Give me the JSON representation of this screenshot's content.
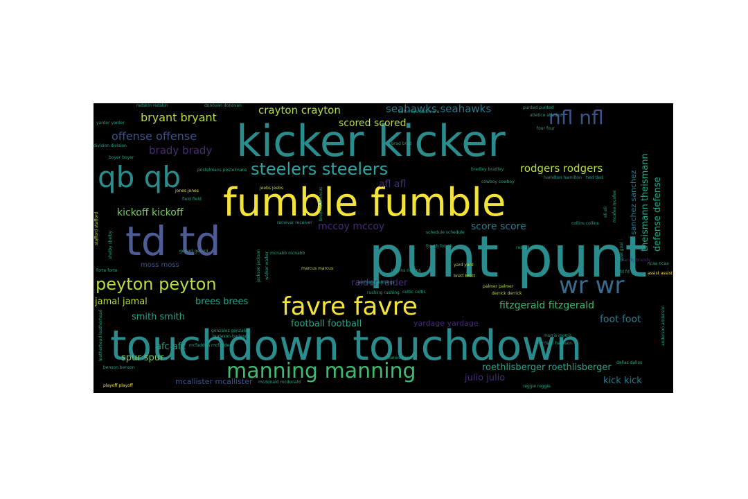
{
  "wordcloud": {
    "palette": {
      "teal": "#2a8c8c",
      "yellow": "#f3e23a",
      "slate": "#4e5b95",
      "green": "#7acb60",
      "lime": "#b7dd3e",
      "purple": "#472b78",
      "blue": "#3b548c",
      "aqua": "#26a58a"
    },
    "words": [
      {
        "text": "punt punt",
        "color": "#2a8c8c"
      },
      {
        "text": "touchdown touchdown",
        "color": "#2a8c8c"
      },
      {
        "text": "kicker kicker",
        "color": "#2a8c8c"
      },
      {
        "text": "fumble fumble",
        "color": "#f3e23a"
      },
      {
        "text": "td td",
        "color": "#4e5b95"
      },
      {
        "text": "qb qb",
        "color": "#2a8c8c"
      },
      {
        "text": "favre favre",
        "color": "#f3e23a"
      },
      {
        "text": "manning manning",
        "color": "#3fbc73"
      },
      {
        "text": "wr wr",
        "color": "#3a6a8c"
      },
      {
        "text": "peyton peyton",
        "color": "#b7dd3e"
      },
      {
        "text": "steelers steelers",
        "color": "#2ea6a4"
      },
      {
        "text": "nfl nfl",
        "color": "#3b548c"
      },
      {
        "text": "crayton crayton",
        "color": "#b7dd3e"
      },
      {
        "text": "seahawks seahawks",
        "color": "#2a7a8c"
      },
      {
        "text": "bryant bryant",
        "color": "#b7dd3e"
      },
      {
        "text": "offense offense",
        "color": "#3b548c"
      },
      {
        "text": "brady brady",
        "color": "#472b78"
      },
      {
        "text": "scored scored",
        "color": "#b7dd3e"
      },
      {
        "text": "rodgers rodgers",
        "color": "#b7dd3e"
      },
      {
        "text": "afl afl",
        "color": "#472b78"
      },
      {
        "text": "kickoff kickoff",
        "color": "#7acb60"
      },
      {
        "text": "mccoy mccoy",
        "color": "#472b78"
      },
      {
        "text": "score score",
        "color": "#2a7a8c"
      },
      {
        "text": "raider raider",
        "color": "#472b78"
      },
      {
        "text": "jamal jamal",
        "color": "#b7dd3e"
      },
      {
        "text": "brees brees",
        "color": "#26a58a"
      },
      {
        "text": "smith smith",
        "color": "#26a58a"
      },
      {
        "text": "fitzgerald fitzgerald",
        "color": "#3fbc73"
      },
      {
        "text": "foot foot",
        "color": "#2a7a8c"
      },
      {
        "text": "football football",
        "color": "#26a58a"
      },
      {
        "text": "yardage yardage",
        "color": "#472b78"
      },
      {
        "text": "afc afc",
        "color": "#26a58a"
      },
      {
        "text": "spur spur",
        "color": "#7acb60"
      },
      {
        "text": "mcallister mcallister",
        "color": "#3b548c"
      },
      {
        "text": "julio julio",
        "color": "#472b78"
      },
      {
        "text": "roethlisberger roethlisberger",
        "color": "#26a58a"
      },
      {
        "text": "kick kick",
        "color": "#2a7a8c"
      },
      {
        "text": "theismann theismann",
        "color": "#26a58a"
      },
      {
        "text": "defense defense",
        "color": "#26a58a"
      },
      {
        "text": "sanchez sanchez",
        "color": "#2a7a8c"
      },
      {
        "text": "moss moss",
        "color": "#3b548c"
      },
      {
        "text": "redskin redskin",
        "color": "#26a58a"
      },
      {
        "text": "donovan donovan",
        "color": "#26a58a"
      },
      {
        "text": "punted punted",
        "color": "#26a58a"
      },
      {
        "text": "yarder yarder",
        "color": "#26a58a"
      },
      {
        "text": "division division",
        "color": "#26a58a"
      },
      {
        "text": "boyer boyer",
        "color": "#26a58a"
      },
      {
        "text": "jones jones",
        "color": "#f3e23a"
      },
      {
        "text": "jeebs jeebs",
        "color": "#b7dd3e"
      },
      {
        "text": "postelmans postelmans",
        "color": "#26a58a"
      },
      {
        "text": "bradley bradley",
        "color": "#26a58a"
      },
      {
        "text": "fourth fourth",
        "color": "#26a58a"
      },
      {
        "text": "russell russell",
        "color": "#26a58a"
      },
      {
        "text": "collins collins",
        "color": "#26a58a"
      },
      {
        "text": "riggins riggins",
        "color": "#26a58a"
      },
      {
        "text": "yard yard",
        "color": "#b7dd3e"
      },
      {
        "text": "brett brett",
        "color": "#b7dd3e"
      },
      {
        "text": "jennings jennings",
        "color": "#26a58a"
      },
      {
        "text": "rushing rushing",
        "color": "#26a58a"
      },
      {
        "text": "celtic celtic",
        "color": "#26a58a"
      },
      {
        "text": "palmer palmer",
        "color": "#b7dd3e"
      },
      {
        "text": "derrick derrick",
        "color": "#b7dd3e"
      },
      {
        "text": "playoff playoff",
        "color": "#f3e23a"
      },
      {
        "text": "reggie reggie",
        "color": "#26a58a"
      },
      {
        "text": "dallas dallas",
        "color": "#26a58a"
      },
      {
        "text": "harrison harrison",
        "color": "#26a58a"
      },
      {
        "text": "morris morris",
        "color": "#26a58a"
      },
      {
        "text": "gonzalez gonzalez",
        "color": "#26a58a"
      },
      {
        "text": "burleson burleson",
        "color": "#26a58a"
      },
      {
        "text": "mcfadden mcfadden",
        "color": "#26a58a"
      },
      {
        "text": "hanes hanes",
        "color": "#26a58a"
      },
      {
        "text": "benson benson",
        "color": "#26a58a"
      },
      {
        "text": "stafford stafford",
        "color": "#b7dd3e"
      },
      {
        "text": "shelby shelby",
        "color": "#26a58a"
      },
      {
        "text": "forte forte",
        "color": "#26a58a"
      },
      {
        "text": "gerard gerard",
        "color": "#26a58a"
      },
      {
        "text": "jackson jackson",
        "color": "#26a58a"
      },
      {
        "text": "assist assist",
        "color": "#f3e23a"
      },
      {
        "text": "fd fd",
        "color": "#26a58a"
      },
      {
        "text": "ncaa ncaa",
        "color": "#26a58a"
      },
      {
        "text": "atletico atletico",
        "color": "#26a58a"
      },
      {
        "text": "field field",
        "color": "#26a58a"
      },
      {
        "text": "hamilton hamilton",
        "color": "#26a58a"
      },
      {
        "text": "tied tied",
        "color": "#26a58a"
      },
      {
        "text": "eli eli",
        "color": "#26a58a"
      },
      {
        "text": "mcafee mcafee",
        "color": "#26a58a"
      },
      {
        "text": "goal goal",
        "color": "#26a58a"
      },
      {
        "text": "marcus marcus",
        "color": "#b7dd3e"
      },
      {
        "text": "schedule schedule",
        "color": "#26a58a"
      },
      {
        "text": "receiver receiver",
        "color": "#26a58a"
      },
      {
        "text": "mcnabb mcnabb",
        "color": "#26a58a"
      },
      {
        "text": "cowboy cowboy",
        "color": "#26a58a"
      },
      {
        "text": "broncos broncos",
        "color": "#26a58a"
      },
      {
        "text": "baltimore baltimore",
        "color": "#26a58a"
      },
      {
        "text": "four four",
        "color": "#26a58a"
      },
      {
        "text": "brad brad",
        "color": "#26a58a"
      },
      {
        "text": "leatherhead leatherhead",
        "color": "#26a58a"
      },
      {
        "text": "mcdonald mcdonald",
        "color": "#26a58a"
      },
      {
        "text": "walker walker",
        "color": "#26a58a"
      },
      {
        "text": "anderson anderson",
        "color": "#26a58a"
      },
      {
        "text": "brandy brandy",
        "color": "#472b78"
      }
    ]
  }
}
